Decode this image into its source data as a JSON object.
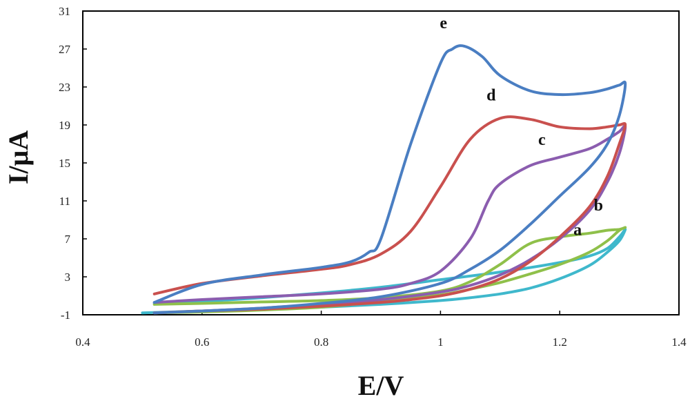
{
  "chart_data": {
    "type": "line",
    "xlabel": "E/V",
    "ylabel": "I/μA",
    "xlim": [
      0.4,
      1.4
    ],
    "ylim": [
      -1,
      31
    ],
    "xticks": [
      0.4,
      0.6,
      0.8,
      1,
      1.2,
      1.4
    ],
    "xtick_labels": [
      "0.4",
      "0.6",
      "0.8",
      "1",
      "1.2",
      "1.4"
    ],
    "yticks": [
      -1,
      3,
      7,
      11,
      15,
      19,
      23,
      27,
      31
    ],
    "ytick_labels": [
      "-1",
      "3",
      "7",
      "11",
      "15",
      "19",
      "23",
      "27",
      "31"
    ],
    "grid": false,
    "legend": "none",
    "series": [
      {
        "name": "a",
        "color": "#3FB8CC",
        "label_at": [
          1.23,
          7.4
        ],
        "x": [
          0.5,
          0.6,
          0.7,
          0.8,
          0.9,
          1.0,
          1.05,
          1.1,
          1.15,
          1.2,
          1.25,
          1.28,
          1.3,
          1.31,
          1.3,
          1.28,
          1.25,
          1.2,
          1.1,
          1.0,
          0.9,
          0.8,
          0.7,
          0.6,
          0.52
        ],
        "y": [
          -0.8,
          -0.6,
          -0.4,
          -0.2,
          0.1,
          0.5,
          0.8,
          1.2,
          1.8,
          2.8,
          4.2,
          5.6,
          6.8,
          8.0,
          7.2,
          6.0,
          5.2,
          4.5,
          3.5,
          2.7,
          1.9,
          1.3,
          0.8,
          0.4,
          0.2
        ]
      },
      {
        "name": "b",
        "color": "#8FC04A",
        "label_at": [
          1.265,
          10.0
        ],
        "x": [
          0.52,
          0.6,
          0.7,
          0.8,
          0.9,
          1.0,
          1.05,
          1.1,
          1.15,
          1.2,
          1.25,
          1.28,
          1.3,
          1.31,
          1.3,
          1.28,
          1.25,
          1.2,
          1.15,
          1.1,
          1.05,
          1.0,
          0.9,
          0.8,
          0.7,
          0.6,
          0.52
        ],
        "y": [
          0.1,
          0.2,
          0.35,
          0.5,
          0.8,
          1.5,
          2.5,
          4.3,
          6.5,
          7.2,
          7.6,
          7.9,
          8.0,
          8.2,
          7.9,
          6.8,
          5.6,
          4.3,
          3.3,
          2.4,
          1.7,
          1.1,
          0.4,
          -0.2,
          -0.5,
          -0.7,
          -0.8
        ]
      },
      {
        "name": "c",
        "color": "#8B5DAF",
        "label_at": [
          1.17,
          16.9
        ],
        "x": [
          0.52,
          0.6,
          0.7,
          0.8,
          0.9,
          0.95,
          1.0,
          1.05,
          1.08,
          1.1,
          1.15,
          1.2,
          1.25,
          1.28,
          1.3,
          1.31,
          1.3,
          1.28,
          1.25,
          1.2,
          1.15,
          1.1,
          1.05,
          1.0,
          0.9,
          0.8,
          0.7,
          0.6,
          0.52
        ],
        "y": [
          0.3,
          0.6,
          0.9,
          1.2,
          1.7,
          2.3,
          3.6,
          7.0,
          11.0,
          12.8,
          14.7,
          15.6,
          16.5,
          17.5,
          18.3,
          18.8,
          16.0,
          13.0,
          10.0,
          7.0,
          4.8,
          3.2,
          2.1,
          1.4,
          0.6,
          0.1,
          -0.3,
          -0.6,
          -0.8
        ]
      },
      {
        "name": "d",
        "color": "#C9504E",
        "label_at": [
          1.085,
          21.6
        ],
        "x": [
          0.52,
          0.6,
          0.7,
          0.8,
          0.85,
          0.9,
          0.95,
          1.0,
          1.05,
          1.1,
          1.15,
          1.2,
          1.25,
          1.28,
          1.3,
          1.31,
          1.3,
          1.28,
          1.25,
          1.2,
          1.15,
          1.1,
          1.05,
          1.0,
          0.95,
          0.9,
          0.8,
          0.7,
          0.6,
          0.52
        ],
        "y": [
          1.2,
          2.3,
          3.1,
          3.8,
          4.3,
          5.4,
          7.8,
          12.5,
          17.5,
          19.7,
          19.6,
          18.8,
          18.6,
          18.8,
          19.0,
          19.0,
          17.0,
          13.6,
          10.4,
          7.2,
          4.6,
          2.8,
          1.7,
          1.0,
          0.6,
          0.3,
          -0.1,
          -0.4,
          -0.6,
          -0.8
        ]
      },
      {
        "name": "e",
        "color": "#4A7EC2",
        "label_at": [
          1.005,
          29.2
        ],
        "x": [
          0.52,
          0.6,
          0.7,
          0.8,
          0.85,
          0.88,
          0.9,
          0.95,
          1.0,
          1.02,
          1.04,
          1.07,
          1.1,
          1.15,
          1.2,
          1.25,
          1.28,
          1.3,
          1.31,
          1.3,
          1.28,
          1.25,
          1.2,
          1.15,
          1.1,
          1.05,
          1.0,
          0.9,
          0.8,
          0.7,
          0.6,
          0.52
        ],
        "y": [
          0.3,
          2.2,
          3.2,
          4.0,
          4.6,
          5.6,
          7.0,
          17.0,
          25.5,
          27.0,
          27.3,
          26.2,
          24.2,
          22.6,
          22.2,
          22.4,
          22.8,
          23.2,
          23.3,
          20.0,
          17.0,
          14.5,
          11.5,
          8.5,
          5.8,
          3.8,
          2.3,
          0.9,
          0.2,
          -0.3,
          -0.6,
          -0.8
        ]
      }
    ]
  }
}
